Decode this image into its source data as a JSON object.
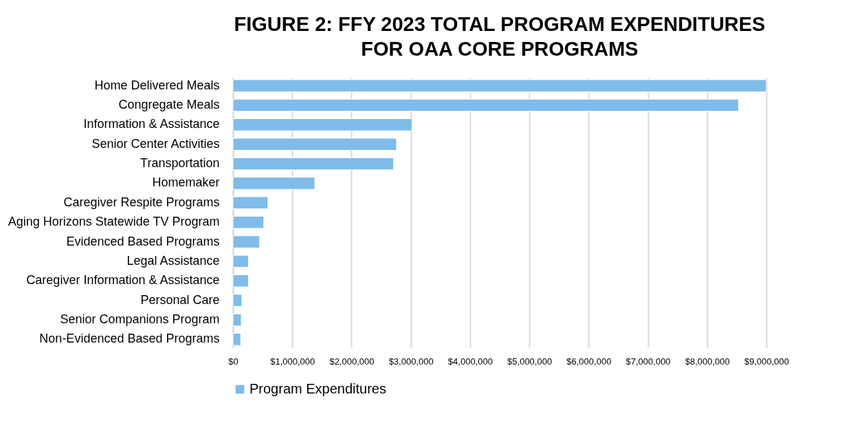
{
  "chart_data": {
    "type": "bar",
    "orientation": "horizontal",
    "title": "FIGURE 2: FFY 2023 TOTAL PROGRAM EXPENDITURES\nFOR OAA CORE PROGRAMS",
    "categories": [
      "Home Delivered Meals",
      "Congregate Meals",
      "Information & Assistance",
      "Senior Center Activities",
      "Transportation",
      "Homemaker",
      "Caregiver Respite Programs",
      "Aging Horizons Statewide TV Program",
      "Evidenced Based Programs",
      "Legal Assistance",
      "Caregiver Information & Assistance",
      "Personal Care",
      "Senior Companions Program",
      "Non-Evidenced Based Programs"
    ],
    "series": [
      {
        "name": "Program Expenditures",
        "color": "#7fbce9",
        "values": [
          9000000,
          8530000,
          3020000,
          2760000,
          2710000,
          1380000,
          590000,
          520000,
          450000,
          260000,
          260000,
          150000,
          140000,
          130000
        ]
      }
    ],
    "xlim": [
      0,
      9000000
    ],
    "xticks": [
      {
        "value": 0,
        "label": "$0"
      },
      {
        "value": 1000000,
        "label": "$1,000,000"
      },
      {
        "value": 2000000,
        "label": "$2,000,000"
      },
      {
        "value": 3000000,
        "label": "$3,000,000"
      },
      {
        "value": 4000000,
        "label": "$4,000,000"
      },
      {
        "value": 5000000,
        "label": "$5,000,000"
      },
      {
        "value": 6000000,
        "label": "$6,000,000"
      },
      {
        "value": 7000000,
        "label": "$7,000,000"
      },
      {
        "value": 8000000,
        "label": "$8,000,000"
      },
      {
        "value": 9000000,
        "label": "$9,000,000"
      }
    ],
    "grid": "x",
    "legend": "bottom"
  }
}
